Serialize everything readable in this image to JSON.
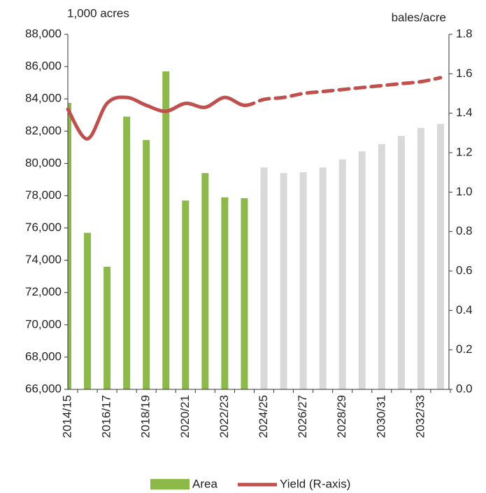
{
  "chart_data": {
    "type": "bar_line",
    "y_label": "1,000 acres",
    "y2_label": "bales/acre",
    "categories": [
      "2014/15",
      null,
      "2016/17",
      null,
      "2018/19",
      null,
      "2020/21",
      null,
      "2022/23",
      null,
      "2024/25",
      null,
      "2026/27",
      null,
      "2028/29",
      null,
      "2030/31",
      null,
      "2032/33",
      null
    ],
    "series": [
      {
        "name": "Area",
        "type": "bar",
        "color": "#8db84a",
        "values": [
          83750,
          75700,
          73600,
          82900,
          81450,
          85700,
          77700,
          79400,
          77900,
          77850,
          79750,
          79400,
          79450,
          79750,
          80250,
          80750,
          81200,
          81700,
          82200,
          82450
        ],
        "point_colors": [
          "#8db84a",
          "#8db84a",
          "#8db84a",
          "#8db84a",
          "#8db84a",
          "#8db84a",
          "#8db84a",
          "#8db84a",
          "#8db84a",
          "#8db84a",
          "#d9d9d9",
          "#d9d9d9",
          "#d9d9d9",
          "#d9d9d9",
          "#d9d9d9",
          "#d9d9d9",
          "#d9d9d9",
          "#d9d9d9",
          "#d9d9d9",
          "#d9d9d9"
        ]
      },
      {
        "name": "Yield (R-axis)",
        "type": "line",
        "axis": "y2",
        "color": "#c0504d",
        "values": [
          1.42,
          1.27,
          1.45,
          1.48,
          1.44,
          1.41,
          1.45,
          1.43,
          1.48,
          1.44,
          1.47,
          1.48,
          1.5,
          1.51,
          1.52,
          1.53,
          1.54,
          1.55,
          1.56,
          1.58
        ],
        "segment_styles": [
          "solid",
          "solid",
          "solid",
          "solid",
          "solid",
          "solid",
          "solid",
          "solid",
          "solid",
          "solid",
          "dashed",
          "dashed",
          "dashed",
          "dashed",
          "dashed",
          "dashed",
          "dashed",
          "dashed",
          "dashed",
          "dashed"
        ]
      }
    ],
    "ylim": [
      66000,
      88000
    ],
    "yticks": [
      {
        "value": 66000,
        "label": "66,000"
      },
      {
        "value": 68000,
        "label": "68,000"
      },
      {
        "value": 70000,
        "label": "70,000"
      },
      {
        "value": 72000,
        "label": "72,000"
      },
      {
        "value": 74000,
        "label": "74,000"
      },
      {
        "value": 76000,
        "label": "76,000"
      },
      {
        "value": 78000,
        "label": "78,000"
      },
      {
        "value": 80000,
        "label": "80,000"
      },
      {
        "value": 82000,
        "label": "82,000"
      },
      {
        "value": 84000,
        "label": "84,000"
      },
      {
        "value": 86000,
        "label": "86,000"
      },
      {
        "value": 88000,
        "label": "88,000"
      }
    ],
    "y2lim": [
      0,
      1.8
    ],
    "y2ticks": [
      {
        "value": 0,
        "label": "0.0"
      },
      0.2,
      0.4,
      0.6,
      0.8,
      {
        "value": 1,
        "label": "1.0"
      },
      1.2,
      1.4,
      1.6,
      1.8
    ],
    "grid": false,
    "legend": "bottom"
  }
}
